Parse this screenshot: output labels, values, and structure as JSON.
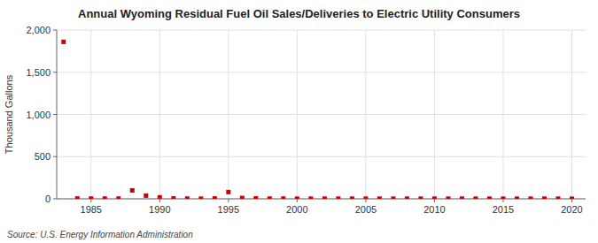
{
  "chart_data": {
    "type": "scatter",
    "title": "Annual Wyoming Residual Fuel Oil Sales/Deliveries to Electric Utility Consumers",
    "y_label": "Thousand Gallons",
    "annotations": [
      "Source: U.S. Energy Information Administration"
    ],
    "x": [
      1983,
      1984,
      1985,
      1986,
      1987,
      1988,
      1989,
      1990,
      1991,
      1992,
      1993,
      1994,
      1995,
      1996,
      1997,
      1998,
      1999,
      2000,
      2001,
      2002,
      2003,
      2004,
      2005,
      2006,
      2007,
      2008,
      2009,
      2010,
      2011,
      2012,
      2013,
      2014,
      2015,
      2016,
      2017,
      2018,
      2019,
      2020
    ],
    "values": [
      1860,
      4,
      3,
      3,
      3,
      100,
      38,
      18,
      5,
      3,
      2,
      4,
      80,
      10,
      5,
      3,
      3,
      2,
      2,
      2,
      2,
      2,
      2,
      2,
      2,
      2,
      2,
      2,
      2,
      2,
      2,
      2,
      2,
      2,
      2,
      2,
      2,
      1
    ],
    "color": "#cc0000",
    "marker": "square",
    "xlim": [
      1982.5,
      2021
    ],
    "ylim": [
      0,
      2000
    ],
    "xticks": [
      1985,
      1990,
      1995,
      2000,
      2005,
      2010,
      2015,
      2020
    ],
    "yticks": [
      0,
      500,
      {
        "value": 1000,
        "label": "1,000"
      },
      {
        "value": 1500,
        "label": "1,500"
      },
      {
        "value": 2000,
        "label": "2,000"
      }
    ],
    "grid": true
  }
}
